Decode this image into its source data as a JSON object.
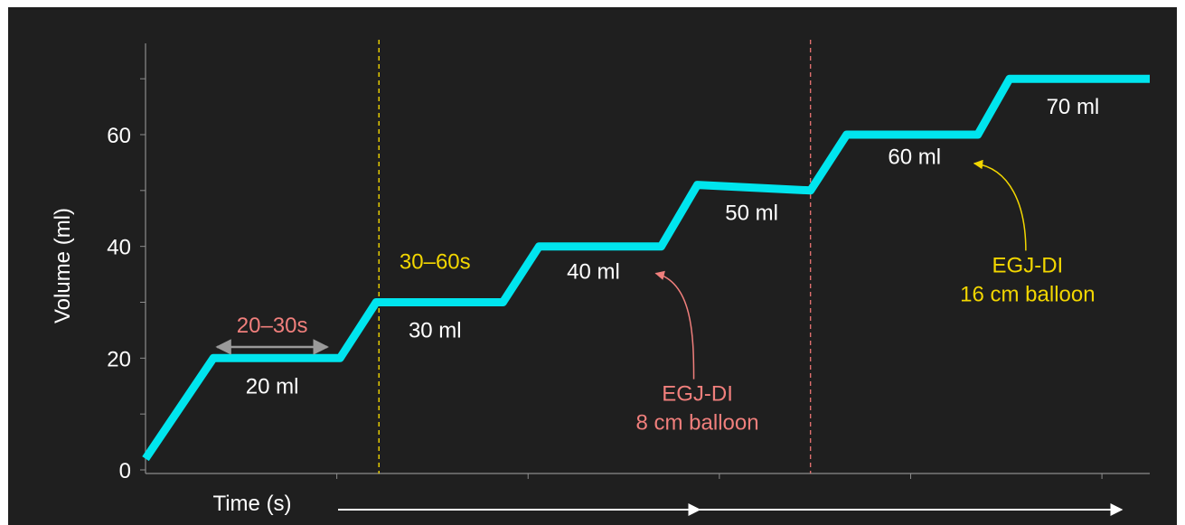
{
  "chart_data": {
    "type": "line",
    "title": "",
    "xlabel": "Time (s)",
    "ylabel": "Volume (ml)",
    "ylim": [
      0,
      72
    ],
    "yticks": [
      0,
      20,
      40,
      60
    ],
    "grid": false,
    "series": [
      {
        "color": "#00e5ee",
        "points": [
          {
            "t": 0,
            "v": 2
          },
          {
            "t": 75,
            "v": 20
          },
          {
            "t": 215,
            "v": 20
          },
          {
            "t": 255,
            "v": 30
          },
          {
            "t": 395,
            "v": 30
          },
          {
            "t": 435,
            "v": 40
          },
          {
            "t": 570,
            "v": 40
          },
          {
            "t": 610,
            "v": 51
          },
          {
            "t": 735,
            "v": 50
          },
          {
            "t": 775,
            "v": 60
          },
          {
            "t": 920,
            "v": 60
          },
          {
            "t": 955,
            "v": 70
          },
          {
            "t": 1110,
            "v": 70
          }
        ]
      }
    ],
    "step_labels": [
      {
        "text": "20 ml",
        "t": 140,
        "v": 15
      },
      {
        "text": "30 ml",
        "t": 320,
        "v": 25
      },
      {
        "text": "40 ml",
        "t": 495,
        "v": 35.5
      },
      {
        "text": "50 ml",
        "t": 670,
        "v": 46
      },
      {
        "text": "60 ml",
        "t": 850,
        "v": 56
      },
      {
        "text": "70 ml",
        "t": 1025,
        "v": 65
      }
    ],
    "vlines": [
      {
        "t": 258,
        "color": "#f2d600"
      },
      {
        "t": 735,
        "color": "#e0706f"
      }
    ],
    "annotations": {
      "interval_1": {
        "text": "20–30s",
        "color": "#f07f7c",
        "t_start": 75,
        "t_end": 205,
        "v": 22
      },
      "interval_2": {
        "text": "30–60s",
        "color": "#f2d600",
        "t": 320,
        "v": 36
      },
      "egj_8": {
        "line1": "EGJ-DI",
        "line2": "8 cm balloon",
        "color": "#f07f7c",
        "t": 610,
        "v": 13,
        "arrow_to_t": 560,
        "arrow_to_v": 35.5
      },
      "egj_16": {
        "line1": "EGJ-DI",
        "line2": "16 cm balloon",
        "color": "#f2d600",
        "t": 975,
        "v": 36,
        "arrow_to_t": 910,
        "arrow_to_v": 55.5
      }
    },
    "colors": {
      "background": "#1f1f1f",
      "axis": "#8c8c8c",
      "text": "#ffffff",
      "time_arrow": "#ffffff"
    }
  }
}
